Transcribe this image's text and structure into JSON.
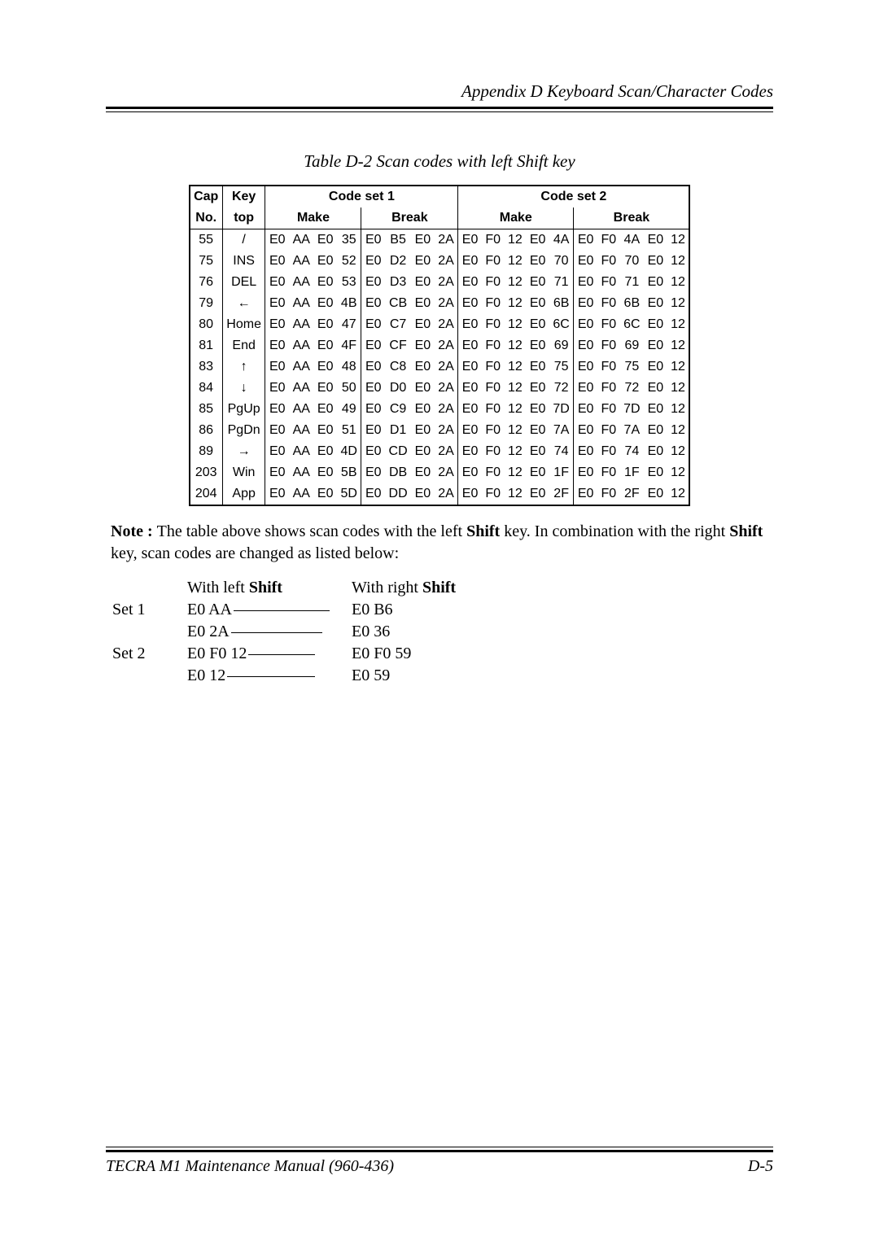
{
  "header": {
    "appendix": "Appendix D   Keyboard Scan/Character Codes"
  },
  "caption": "Table D-2  Scan codes with left Shift key",
  "table": {
    "head": {
      "cap": "Cap",
      "no": "No.",
      "key": "Key",
      "top": "top",
      "set1": "Code set 1",
      "set2": "Code set 2",
      "make": "Make",
      "break": "Break"
    },
    "rows": [
      {
        "cap": "55",
        "key": "/",
        "s1m": [
          "E0",
          "AA",
          "E0",
          "35"
        ],
        "s1b": [
          "E0",
          "B5",
          "E0",
          "2A"
        ],
        "s2m": [
          "E0",
          "F0",
          "12",
          "E0",
          "4A"
        ],
        "s2b": [
          "E0",
          "F0",
          "4A",
          "E0",
          "12"
        ]
      },
      {
        "cap": "75",
        "key": "INS",
        "s1m": [
          "E0",
          "AA",
          "E0",
          "52"
        ],
        "s1b": [
          "E0",
          "D2",
          "E0",
          "2A"
        ],
        "s2m": [
          "E0",
          "F0",
          "12",
          "E0",
          "70"
        ],
        "s2b": [
          "E0",
          "F0",
          "70",
          "E0",
          "12"
        ]
      },
      {
        "cap": "76",
        "key": "DEL",
        "s1m": [
          "E0",
          "AA",
          "E0",
          "53"
        ],
        "s1b": [
          "E0",
          "D3",
          "E0",
          "2A"
        ],
        "s2m": [
          "E0",
          "F0",
          "12",
          "E0",
          "71"
        ],
        "s2b": [
          "E0",
          "F0",
          "71",
          "E0",
          "12"
        ]
      },
      {
        "cap": "79",
        "key": "←",
        "s1m": [
          "E0",
          "AA",
          "E0",
          "4B"
        ],
        "s1b": [
          "E0",
          "CB",
          "E0",
          "2A"
        ],
        "s2m": [
          "E0",
          "F0",
          "12",
          "E0",
          "6B"
        ],
        "s2b": [
          "E0",
          "F0",
          "6B",
          "E0",
          "12"
        ]
      },
      {
        "cap": "80",
        "key": "Home",
        "s1m": [
          "E0",
          "AA",
          "E0",
          "47"
        ],
        "s1b": [
          "E0",
          "C7",
          "E0",
          "2A"
        ],
        "s2m": [
          "E0",
          "F0",
          "12",
          "E0",
          "6C"
        ],
        "s2b": [
          "E0",
          "F0",
          "6C",
          "E0",
          "12"
        ]
      },
      {
        "cap": "81",
        "key": "End",
        "s1m": [
          "E0",
          "AA",
          "E0",
          "4F"
        ],
        "s1b": [
          "E0",
          "CF",
          "E0",
          "2A"
        ],
        "s2m": [
          "E0",
          "F0",
          "12",
          "E0",
          "69"
        ],
        "s2b": [
          "E0",
          "F0",
          "69",
          "E0",
          "12"
        ]
      },
      {
        "cap": "83",
        "key": "↑",
        "s1m": [
          "E0",
          "AA",
          "E0",
          "48"
        ],
        "s1b": [
          "E0",
          "C8",
          "E0",
          "2A"
        ],
        "s2m": [
          "E0",
          "F0",
          "12",
          "E0",
          "75"
        ],
        "s2b": [
          "E0",
          "F0",
          "75",
          "E0",
          "12"
        ]
      },
      {
        "cap": "84",
        "key": "↓",
        "s1m": [
          "E0",
          "AA",
          "E0",
          "50"
        ],
        "s1b": [
          "E0",
          "D0",
          "E0",
          "2A"
        ],
        "s2m": [
          "E0",
          "F0",
          "12",
          "E0",
          "72"
        ],
        "s2b": [
          "E0",
          "F0",
          "72",
          "E0",
          "12"
        ]
      },
      {
        "cap": "85",
        "key": "PgUp",
        "s1m": [
          "E0",
          "AA",
          "E0",
          "49"
        ],
        "s1b": [
          "E0",
          "C9",
          "E0",
          "2A"
        ],
        "s2m": [
          "E0",
          "F0",
          "12",
          "E0",
          "7D"
        ],
        "s2b": [
          "E0",
          "F0",
          "7D",
          "E0",
          "12"
        ]
      },
      {
        "cap": "86",
        "key": "PgDn",
        "s1m": [
          "E0",
          "AA",
          "E0",
          "51"
        ],
        "s1b": [
          "E0",
          "D1",
          "E0",
          "2A"
        ],
        "s2m": [
          "E0",
          "F0",
          "12",
          "E0",
          "7A"
        ],
        "s2b": [
          "E0",
          "F0",
          "7A",
          "E0",
          "12"
        ]
      },
      {
        "cap": "89",
        "key": "→",
        "s1m": [
          "E0",
          "AA",
          "E0",
          "4D"
        ],
        "s1b": [
          "E0",
          "CD",
          "E0",
          "2A"
        ],
        "s2m": [
          "E0",
          "F0",
          "12",
          "E0",
          "74"
        ],
        "s2b": [
          "E0",
          "F0",
          "74",
          "E0",
          "12"
        ]
      },
      {
        "cap": "203",
        "key": "Win",
        "s1m": [
          "E0",
          "AA",
          "E0",
          "5B"
        ],
        "s1b": [
          "E0",
          "DB",
          "E0",
          "2A"
        ],
        "s2m": [
          "E0",
          "F0",
          "12",
          "E0",
          "1F"
        ],
        "s2b": [
          "E0",
          "F0",
          "1F",
          "E0",
          "12"
        ]
      },
      {
        "cap": "204",
        "key": "App",
        "s1m": [
          "E0",
          "AA",
          "E0",
          "5D"
        ],
        "s1b": [
          "E0",
          "DD",
          "E0",
          "2A"
        ],
        "s2m": [
          "E0",
          "F0",
          "12",
          "E0",
          "2F"
        ],
        "s2b": [
          "E0",
          "F0",
          "2F",
          "E0",
          "12"
        ]
      }
    ]
  },
  "note": {
    "prefix": "Note : ",
    "body1": "The table above shows scan codes with the left ",
    "shift": "Shift",
    "body2": " key.  In combination with the right ",
    "body3": " key, scan codes are changed as listed below:"
  },
  "shift_block": {
    "h_left": "With left ",
    "h_right": "With right ",
    "shift": "Shift",
    "set1": "Set 1",
    "set2": "Set 2",
    "rows": [
      {
        "lbl": "Set 1",
        "l": "E0  AA",
        "r": "E0  B6"
      },
      {
        "lbl": "",
        "l": "E0  2A",
        "r": "E0  36"
      },
      {
        "lbl": "Set 2",
        "l": "E0  F0  12",
        "r": "E0  F0  59"
      },
      {
        "lbl": "",
        "l": "E0  12",
        "r": "E0  59"
      }
    ]
  },
  "footer": {
    "left": "TECRA M1 Maintenance Manual (960-436)",
    "right": "D-5"
  }
}
